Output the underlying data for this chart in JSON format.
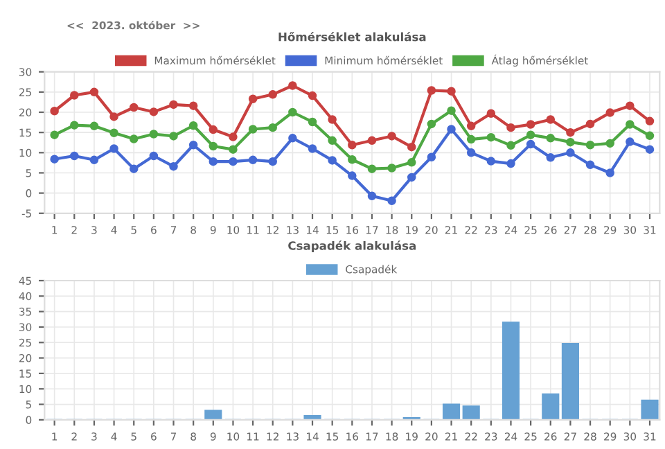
{
  "chart_data": [
    {
      "type": "line",
      "title": "Hőmérséklet alakulása",
      "annotations": [
        "<<  2023. október  >>"
      ],
      "categories": [
        "1",
        "2",
        "3",
        "4",
        "5",
        "6",
        "7",
        "8",
        "9",
        "10",
        "11",
        "12",
        "13",
        "14",
        "15",
        "16",
        "17",
        "18",
        "19",
        "20",
        "21",
        "22",
        "23",
        "24",
        "25",
        "26",
        "27",
        "28",
        "29",
        "30",
        "31"
      ],
      "series": [
        {
          "name": "Maximum hőmérséklet",
          "color": "#c9403f",
          "values": [
            20.3,
            24.2,
            25,
            18.9,
            21.2,
            20.1,
            21.9,
            21.6,
            15.7,
            13.9,
            23.3,
            24.4,
            26.6,
            24.1,
            18.2,
            11.9,
            13,
            14.1,
            11.4,
            25.4,
            25.2,
            16.6,
            19.7,
            16.2,
            17,
            18.2,
            15,
            17.1,
            19.9,
            21.6,
            17.8
          ]
        },
        {
          "name": "Minimum hőmérséklet",
          "color": "#4469d4",
          "values": [
            8.4,
            9.2,
            8.2,
            11,
            6,
            9.2,
            6.6,
            11.9,
            7.8,
            7.8,
            8.2,
            7.8,
            13.6,
            11,
            8.1,
            4.3,
            -0.7,
            -1.9,
            3.9,
            8.9,
            15.8,
            10,
            7.9,
            7.3,
            12.1,
            8.8,
            10,
            7,
            5,
            12.7,
            10.8
          ]
        },
        {
          "name": "Átlag hőmérséklet",
          "color": "#4ea843",
          "values": [
            14.4,
            16.8,
            16.6,
            14.9,
            13.4,
            14.6,
            14.1,
            16.7,
            11.6,
            10.8,
            15.8,
            16.2,
            20,
            17.6,
            13,
            8.3,
            6,
            6.2,
            7.6,
            17.1,
            20.4,
            13.3,
            13.8,
            11.8,
            14.4,
            13.6,
            12.6,
            11.9,
            12.3,
            17,
            14.2
          ]
        }
      ],
      "ylim": [
        -5,
        30
      ],
      "yticks": [
        -5,
        0,
        5,
        10,
        15,
        20,
        25,
        30
      ],
      "grid": true,
      "legend": "top",
      "marker": "circle",
      "line_style": "solid"
    },
    {
      "type": "bar",
      "title": "Csapadék alakulása",
      "categories": [
        "1",
        "2",
        "3",
        "4",
        "5",
        "6",
        "7",
        "8",
        "9",
        "10",
        "11",
        "12",
        "13",
        "14",
        "15",
        "16",
        "17",
        "18",
        "19",
        "20",
        "21",
        "22",
        "23",
        "24",
        "25",
        "26",
        "27",
        "28",
        "29",
        "30",
        "31"
      ],
      "series": [
        {
          "name": "Csapadék",
          "color": "#66a1d3",
          "values": [
            0,
            0,
            0,
            0,
            0,
            0,
            0,
            0,
            3.0,
            0,
            0,
            0,
            0,
            1.3,
            0,
            0,
            0,
            0,
            0.6,
            0,
            5.0,
            4.4,
            0,
            31.5,
            0,
            8.3,
            24.6,
            0,
            0,
            0,
            6.3
          ]
        }
      ],
      "ylim": [
        0,
        45
      ],
      "yticks": [
        0,
        5,
        10,
        15,
        20,
        25,
        30,
        35,
        40,
        45
      ],
      "grid": true,
      "legend": "top"
    }
  ]
}
